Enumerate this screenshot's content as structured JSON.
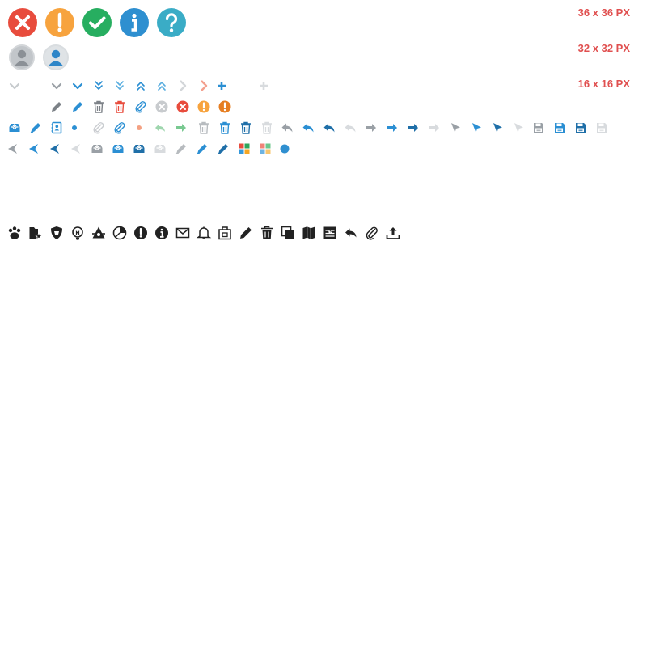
{
  "size_labels": {
    "large": "36 x 36 PX",
    "medium": "32 x 32 PX",
    "small": "16 x 16 PX"
  },
  "icon_sets": {
    "status_36": [
      "close-circle",
      "warning-circle",
      "check-circle",
      "info-circle",
      "help-circle"
    ],
    "user_32": [
      "user-avatar-gray",
      "user-avatar-blue"
    ],
    "small_row_1": [
      "chevron-down",
      "chevron-down",
      "chevron-down",
      "double-chevron-down",
      "double-chevron-down",
      "double-chevron-up",
      "double-chevron-up",
      "chevron-right",
      "chevron-right",
      "plus",
      "plus"
    ],
    "small_row_2": [
      "pencil",
      "pencil",
      "trash",
      "trash",
      "paperclip",
      "close-circle",
      "close-circle",
      "warning-circle",
      "warning-circle"
    ],
    "small_row_3": [
      "inbox",
      "pen",
      "contact-book",
      "dot",
      "paperclip",
      "paperclip",
      "dot",
      "arrow-left",
      "arrow-right",
      "trash",
      "trash",
      "trash",
      "trash",
      "reply",
      "reply",
      "reply",
      "reply",
      "arrow-right",
      "arrow-right",
      "arrow-right",
      "arrow-right",
      "cursor",
      "cursor",
      "cursor",
      "cursor",
      "save",
      "save",
      "save",
      "save"
    ],
    "small_row_4": [
      "cursor-left",
      "cursor-left",
      "cursor-left",
      "cursor-left",
      "inbox",
      "inbox",
      "inbox",
      "inbox",
      "pen",
      "pen",
      "pen",
      "tiles",
      "tiles",
      "dot"
    ],
    "black_row": [
      "paw",
      "folder-star",
      "shield",
      "lightbulb",
      "triangle-badge",
      "pie-chart",
      "warning-circle",
      "info-circle",
      "envelope",
      "bell",
      "clipboard-bag",
      "pencil",
      "trash",
      "copy",
      "map",
      "calendar-grid",
      "reply",
      "paperclip",
      "upload"
    ]
  },
  "colors": {
    "red": "#e84c3d",
    "orange": "#f7a33e",
    "green": "#27ae60",
    "blue": "#3498db",
    "teal": "#3aacc6",
    "gray": "#9aa0a6",
    "light_gray": "#cfd3d6",
    "dark_blue": "#1f6fa8",
    "label_red": "#e05050",
    "black": "#222222"
  }
}
